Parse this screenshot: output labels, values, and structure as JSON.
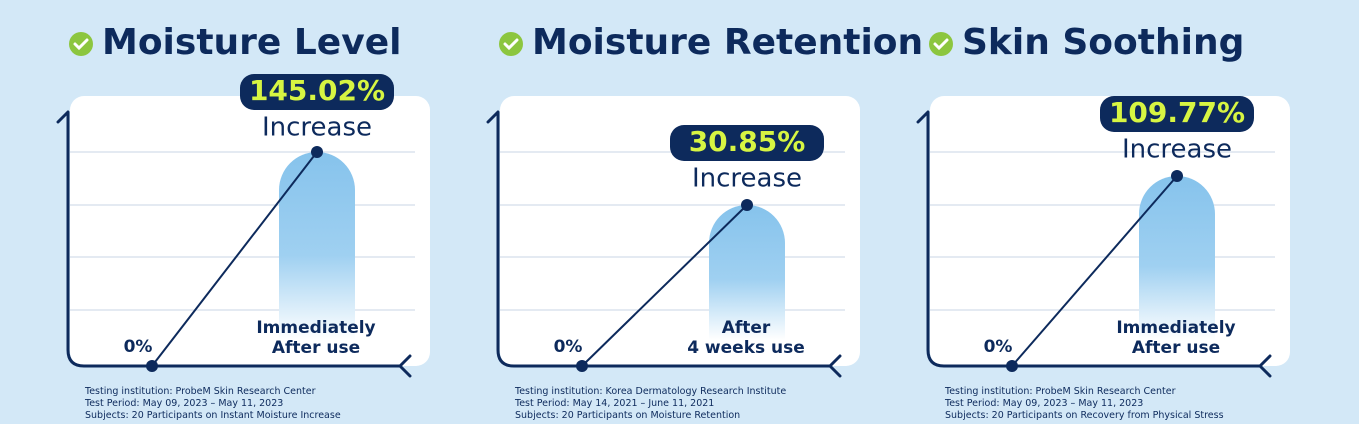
{
  "panels": [
    {
      "title": "Moisture Level",
      "value": "145.02%",
      "caption": "Increase",
      "start": "0%",
      "label": [
        "Immediately",
        "After use"
      ],
      "notes": [
        "Testing institution: ProbeM Skin Research Center",
        "Test Period: May 09, 2023 – May 11, 2023",
        "Subjects: 20 Participants on Instant Moisture Increase"
      ]
    },
    {
      "title": "Moisture Retention",
      "value": "30.85%",
      "caption": "Increase",
      "start": "0%",
      "label": [
        "After",
        "4 weeks use"
      ],
      "notes": [
        "Testing institution: Korea Dermatology Research Institute",
        "Test Period: May 14, 2021 – June 11, 2021",
        "Subjects: 20 Participants on Moisture Retention"
      ]
    },
    {
      "title": "Skin Soothing",
      "value": "109.77%",
      "caption": "Increase",
      "start": "0%",
      "label": [
        "Immediately",
        "After use"
      ],
      "notes": [
        "Testing institution: ProbeM Skin Research Center",
        "Test Period: May 09, 2023 – May 11, 2023",
        "Subjects: 20 Participants on Recovery from Physical Stress"
      ]
    }
  ]
}
